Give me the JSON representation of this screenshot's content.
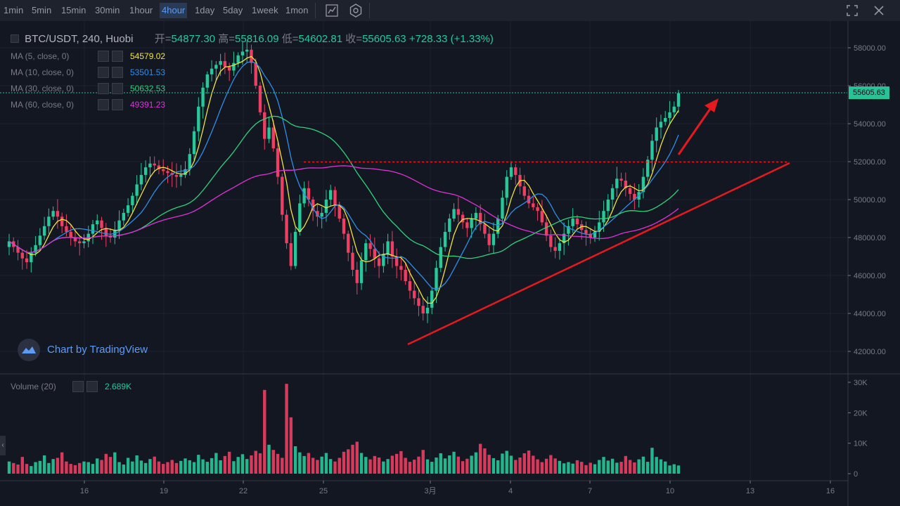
{
  "toolbar": {
    "timeframes": [
      "1min",
      "5min",
      "15min",
      "30min",
      "1hour",
      "4hour",
      "1day",
      "5day",
      "1week",
      "1mon"
    ],
    "active": "4hour",
    "icons": [
      "indicators-icon",
      "settings-icon"
    ],
    "right_icons": [
      "fullscreen-icon",
      "close-icon"
    ]
  },
  "header": {
    "symbol": "BTC/USDT, 240, Huobi",
    "open_label": "开=",
    "open": "54877.30",
    "high_label": "高=",
    "high": "55816.09",
    "low_label": "低=",
    "low": "54602.81",
    "close_label": "收=",
    "close": "55605.63",
    "change": "+728.33 (+1.33%)"
  },
  "ma_legend": [
    {
      "name": "MA (5, close, 0)",
      "value": "54579.02",
      "color": "#f0e43a"
    },
    {
      "name": "MA (10, close, 0)",
      "value": "53501.53",
      "color": "#2f8ee6"
    },
    {
      "name": "MA (30, close, 0)",
      "value": "50632.53",
      "color": "#2ed37a"
    },
    {
      "name": "MA (60, close, 0)",
      "value": "49391.23",
      "color": "#e031d7"
    }
  ],
  "last_price": "55605.63",
  "watermark": "Chart by TradingView",
  "volume_legend": {
    "name": "Volume (20)",
    "value": "2.689K"
  },
  "price_axis": [
    "58000.00",
    "56000.00",
    "54000.00",
    "52000.00",
    "50000.00",
    "48000.00",
    "46000.00",
    "44000.00",
    "42000.00"
  ],
  "volume_axis": [
    "30K",
    "20K",
    "10K",
    "0"
  ],
  "time_axis": [
    "16",
    "19",
    "22",
    "25",
    "3月",
    "4",
    "7",
    "10",
    "13",
    "16"
  ],
  "colors": {
    "up": "#26c99a",
    "down": "#ef3e62",
    "background": "#131722",
    "toolbar": "#1e222d",
    "trendline": "#e7191f",
    "resistance": "#e7191f",
    "price_label": "#27c397"
  },
  "chart_data": {
    "type": "candlestick",
    "symbol": "BTC/USDT",
    "interval": "240",
    "exchange": "Huobi",
    "ylim": [
      41500,
      59000
    ],
    "volume_ylim": [
      0,
      30000
    ],
    "x_tick_labels": [
      "16",
      "19",
      "22",
      "25",
      "3月",
      "4",
      "7",
      "10",
      "13",
      "16"
    ],
    "closes": [
      47800,
      47500,
      47200,
      46900,
      46700,
      47200,
      47600,
      48100,
      48600,
      49100,
      49400,
      49100,
      48600,
      48300,
      48000,
      47800,
      47700,
      47800,
      48200,
      48700,
      48900,
      48500,
      48100,
      48000,
      48400,
      48900,
      49300,
      49700,
      50200,
      50800,
      51300,
      51700,
      51900,
      51800,
      51600,
      51500,
      51400,
      51300,
      51200,
      51300,
      51600,
      52400,
      53600,
      54900,
      55900,
      56600,
      56900,
      57100,
      57300,
      57000,
      56800,
      57200,
      57600,
      57800,
      57900,
      57200,
      56000,
      54600,
      53200,
      53800,
      52700,
      51200,
      49200,
      47700,
      46500,
      48300,
      49800,
      50600,
      50000,
      49400,
      49100,
      49300,
      50000,
      50500,
      49700,
      49000,
      48200,
      47200,
      46300,
      45600,
      46800,
      47700,
      47400,
      46900,
      46500,
      47100,
      47800,
      47000,
      46500,
      46300,
      45700,
      45200,
      44800,
      44400,
      44000,
      44300,
      45200,
      46400,
      47500,
      48300,
      49000,
      49500,
      49200,
      48800,
      48500,
      49000,
      49300,
      48700,
      48200,
      47600,
      48200,
      49000,
      50100,
      51200,
      51700,
      51300,
      50700,
      50200,
      49800,
      49600,
      49400,
      48800,
      48100,
      47500,
      47300,
      47700,
      48200,
      48600,
      49000,
      48700,
      48400,
      48200,
      48000,
      48300,
      48800,
      49400,
      50000,
      50600,
      51100,
      51000,
      50600,
      50300,
      50000,
      50400,
      51200,
      52100,
      53100,
      53800,
      54100,
      54300,
      54600,
      54900,
      55605.63
    ],
    "volumes": [
      4000,
      3500,
      3000,
      5500,
      3200,
      2500,
      3800,
      4200,
      6000,
      3500,
      4800,
      5200,
      7000,
      4000,
      3200,
      2800,
      3500,
      4000,
      3800,
      3200,
      5000,
      4500,
      6500,
      5500,
      7000,
      3800,
      3000,
      5200,
      4000,
      6000,
      4300,
      3500,
      4800,
      5600,
      4000,
      3200,
      3800,
      4500,
      3500,
      4200,
      5000,
      4400,
      3800,
      6200,
      4700,
      3900,
      5100,
      6800,
      4400,
      5800,
      7200,
      4100,
      5500,
      6400,
      4800,
      6000,
      7500,
      6700,
      27500,
      9500,
      7800,
      6500,
      5200,
      29500,
      18500,
      9000,
      7000,
      5800,
      6800,
      5200,
      4500,
      5600,
      6800,
      4800,
      4000,
      5200,
      7200,
      8000,
      9500,
      10500,
      6800,
      5500,
      4700,
      5800,
      5300,
      4000,
      4800,
      5900,
      6500,
      7400,
      5200,
      3900,
      4600,
      5600,
      7800,
      4700,
      3900,
      5300,
      6700,
      5000,
      6000,
      7200,
      5600,
      4100,
      4900,
      5900,
      7000,
      9800,
      8300,
      6200,
      5100,
      4400,
      6600,
      7500,
      5900,
      4500,
      5300,
      6700,
      7600,
      5900,
      4700,
      3800,
      4900,
      6100,
      5000,
      4200,
      3400,
      3800,
      3300,
      4400,
      3900,
      2800,
      3600,
      3100,
      4500,
      5500,
      4300,
      4900,
      3600,
      3900,
      5800,
      4500,
      3700,
      4700,
      5600,
      3900,
      8500,
      5500,
      4700,
      4000,
      2700,
      3100,
      2689
    ]
  }
}
